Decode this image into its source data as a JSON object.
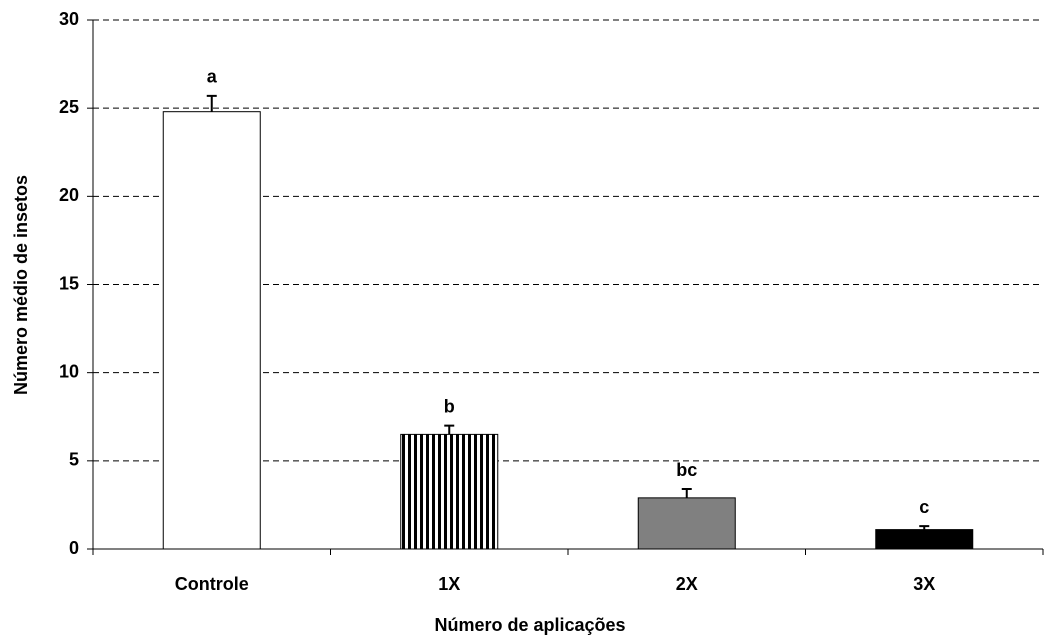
{
  "chart_data": {
    "type": "bar",
    "x_label": "Número de aplicações",
    "y_label": "Número médio de insetos",
    "categories": [
      "Controle",
      "1X",
      "2X",
      "3X"
    ],
    "values": [
      24.8,
      6.5,
      2.9,
      1.1
    ],
    "errors": [
      0.9,
      0.5,
      0.5,
      0.2
    ],
    "annotations": [
      "a",
      "b",
      "bc",
      "c"
    ],
    "fills": [
      "#ffffff",
      "vertical-stripes",
      "#808080",
      "#000000"
    ],
    "ylim": [
      0,
      30
    ],
    "yticks": [
      0,
      5,
      10,
      15,
      20,
      25,
      30
    ],
    "grid": true
  }
}
